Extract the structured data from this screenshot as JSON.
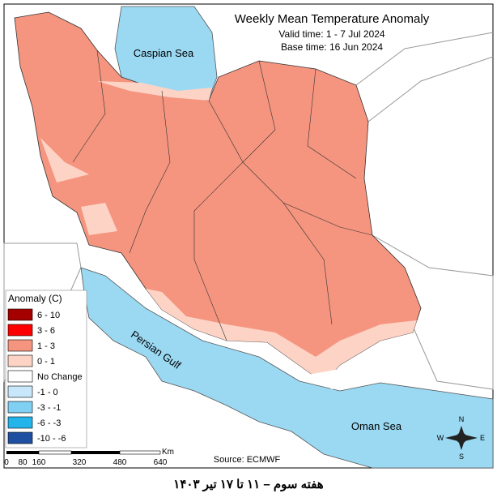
{
  "header": {
    "title": "Weekly Mean Temperature Anomaly",
    "valid_time": "Valid time: 1 - 7 Jul 2024",
    "base_time": "Base time: 16 Jun 2024"
  },
  "labels": {
    "caspian": "Caspian Sea",
    "gulf": "Persian Gulf",
    "oman": "Oman Sea"
  },
  "legend": {
    "title": "Anomaly (C)",
    "items": [
      {
        "label": "6 - 10",
        "color": "#a50000"
      },
      {
        "label": "3 - 6",
        "color": "#ff0000"
      },
      {
        "label": "1 - 3",
        "color": "#f5957f"
      },
      {
        "label": "0 - 1",
        "color": "#fdd3c5"
      },
      {
        "label": "No Change",
        "color": "#ffffff"
      },
      {
        "label": "-1 - 0",
        "color": "#c8e7fa"
      },
      {
        "label": "-3 - -1",
        "color": "#80d0f4"
      },
      {
        "label": "-6 - -3",
        "color": "#22b4ea"
      },
      {
        "label": "-10 - -6",
        "color": "#1f4fa0"
      }
    ]
  },
  "scale": {
    "unit": "Km",
    "labels": [
      "0",
      "80",
      "160",
      "320",
      "480",
      "640"
    ]
  },
  "compass": {
    "n": "N",
    "e": "E",
    "s": "S",
    "w": "W"
  },
  "source": "Source: ECMWF",
  "caption": "هفته سوم – ۱۱ تا ۱۷ تیر ۱۴۰۳"
}
